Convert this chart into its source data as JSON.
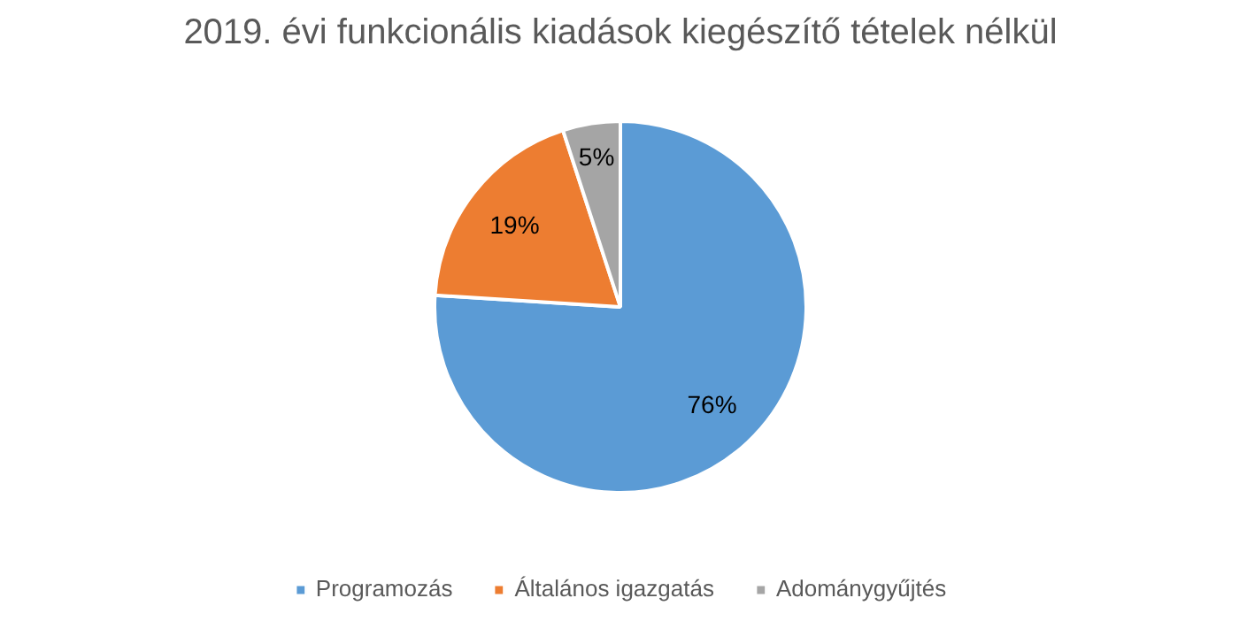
{
  "chart_data": {
    "type": "pie",
    "title": "2019. évi funkcionális kiadások kiegészítő tételek nélkül",
    "categories": [
      "Programozás",
      "Általános igazgatás",
      "Adománygyűjtés"
    ],
    "values": [
      76,
      19,
      5
    ],
    "colors": [
      "#5b9bd5",
      "#ed7d31",
      "#a5a5a5"
    ],
    "value_labels": [
      "76%",
      "19%",
      "5%"
    ],
    "legend": "bottom"
  }
}
